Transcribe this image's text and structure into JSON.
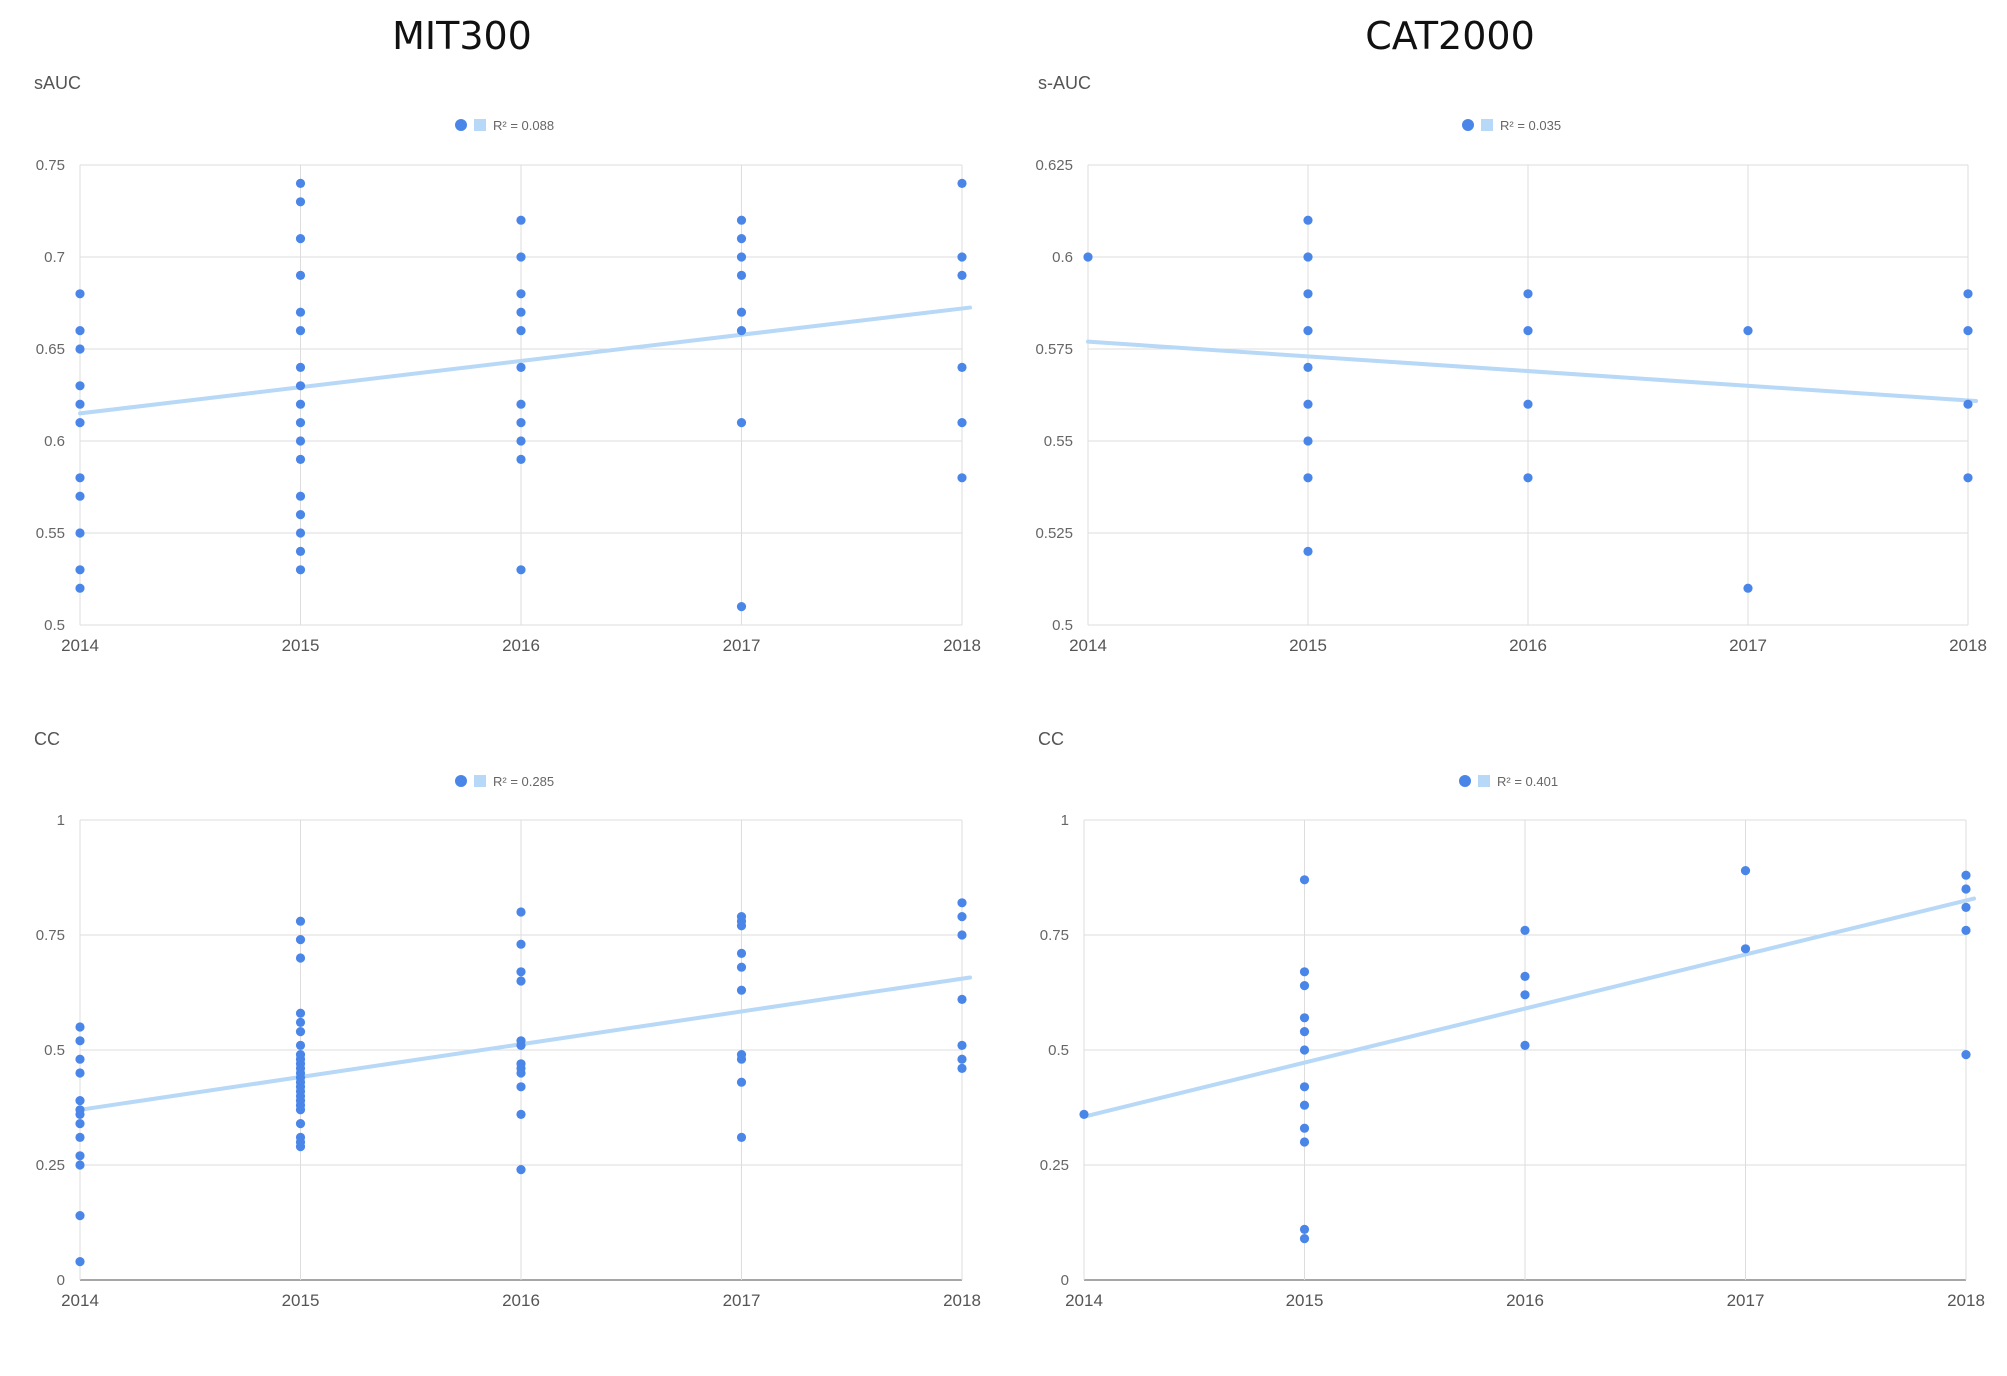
{
  "titles": {
    "left": "MIT300",
    "right": "CAT2000"
  },
  "colors": {
    "point": "#4a86e8",
    "trend": "#b7d8f6",
    "grid": "#dddddd"
  },
  "chart_data": [
    {
      "type": "scatter",
      "title": "MIT300",
      "ylabel": "sAUC",
      "legend": "R² = 0.088",
      "xlim": [
        2014,
        2018
      ],
      "ylim": [
        0.5,
        0.75
      ],
      "xticks": [
        "2014",
        "2015",
        "2016",
        "2017",
        "2018"
      ],
      "yticks": [
        "0.5",
        "0.55",
        "0.6",
        "0.65",
        "0.7",
        "0.75"
      ],
      "grid": true,
      "legend_position": "top-center",
      "trendline": [
        [
          2014,
          0.615
        ],
        [
          2018,
          0.672
        ]
      ],
      "points": [
        [
          2014,
          0.68
        ],
        [
          2014,
          0.66
        ],
        [
          2014,
          0.65
        ],
        [
          2014,
          0.63
        ],
        [
          2014,
          0.62
        ],
        [
          2014,
          0.61
        ],
        [
          2014,
          0.58
        ],
        [
          2014,
          0.57
        ],
        [
          2014,
          0.55
        ],
        [
          2014,
          0.53
        ],
        [
          2014,
          0.52
        ],
        [
          2015,
          0.74
        ],
        [
          2015,
          0.73
        ],
        [
          2015,
          0.71
        ],
        [
          2015,
          0.69
        ],
        [
          2015,
          0.67
        ],
        [
          2015,
          0.66
        ],
        [
          2015,
          0.64
        ],
        [
          2015,
          0.63
        ],
        [
          2015,
          0.62
        ],
        [
          2015,
          0.61
        ],
        [
          2015,
          0.6
        ],
        [
          2015,
          0.59
        ],
        [
          2015,
          0.57
        ],
        [
          2015,
          0.56
        ],
        [
          2015,
          0.55
        ],
        [
          2015,
          0.54
        ],
        [
          2015,
          0.53
        ],
        [
          2016,
          0.72
        ],
        [
          2016,
          0.7
        ],
        [
          2016,
          0.68
        ],
        [
          2016,
          0.67
        ],
        [
          2016,
          0.66
        ],
        [
          2016,
          0.64
        ],
        [
          2016,
          0.62
        ],
        [
          2016,
          0.61
        ],
        [
          2016,
          0.6
        ],
        [
          2016,
          0.59
        ],
        [
          2016,
          0.53
        ],
        [
          2017,
          0.72
        ],
        [
          2017,
          0.71
        ],
        [
          2017,
          0.7
        ],
        [
          2017,
          0.69
        ],
        [
          2017,
          0.67
        ],
        [
          2017,
          0.66
        ],
        [
          2017,
          0.61
        ],
        [
          2017,
          0.51
        ],
        [
          2018,
          0.74
        ],
        [
          2018,
          0.7
        ],
        [
          2018,
          0.69
        ],
        [
          2018,
          0.64
        ],
        [
          2018,
          0.61
        ],
        [
          2018,
          0.58
        ]
      ]
    },
    {
      "type": "scatter",
      "title": "CAT2000",
      "ylabel": "s-AUC",
      "legend": "R² = 0.035",
      "xlim": [
        2014,
        2018
      ],
      "ylim": [
        0.5,
        0.625
      ],
      "xticks": [
        "2014",
        "2015",
        "2016",
        "2017",
        "2018"
      ],
      "yticks": [
        "0.5",
        "0.525",
        "0.55",
        "0.575",
        "0.6",
        "0.625"
      ],
      "grid": true,
      "legend_position": "top-center",
      "trendline": [
        [
          2014,
          0.577
        ],
        [
          2018,
          0.561
        ]
      ],
      "points": [
        [
          2014,
          0.6
        ],
        [
          2015,
          0.61
        ],
        [
          2015,
          0.6
        ],
        [
          2015,
          0.59
        ],
        [
          2015,
          0.58
        ],
        [
          2015,
          0.57
        ],
        [
          2015,
          0.56
        ],
        [
          2015,
          0.55
        ],
        [
          2015,
          0.54
        ],
        [
          2015,
          0.52
        ],
        [
          2016,
          0.59
        ],
        [
          2016,
          0.58
        ],
        [
          2016,
          0.56
        ],
        [
          2016,
          0.54
        ],
        [
          2017,
          0.58
        ],
        [
          2017,
          0.51
        ],
        [
          2018,
          0.59
        ],
        [
          2018,
          0.58
        ],
        [
          2018,
          0.56
        ],
        [
          2018,
          0.54
        ]
      ]
    },
    {
      "type": "scatter",
      "ylabel": "CC",
      "legend": "R² = 0.285",
      "xlim": [
        2014,
        2018
      ],
      "ylim": [
        0,
        1
      ],
      "xticks": [
        "2014",
        "2015",
        "2016",
        "2017",
        "2018"
      ],
      "yticks": [
        "0",
        "0.25",
        "0.5",
        "0.75",
        "1"
      ],
      "grid": true,
      "legend_position": "top-center",
      "trendline": [
        [
          2014,
          0.37
        ],
        [
          2018,
          0.655
        ]
      ],
      "points": [
        [
          2014,
          0.55
        ],
        [
          2014,
          0.52
        ],
        [
          2014,
          0.48
        ],
        [
          2014,
          0.45
        ],
        [
          2014,
          0.39
        ],
        [
          2014,
          0.37
        ],
        [
          2014,
          0.36
        ],
        [
          2014,
          0.34
        ],
        [
          2014,
          0.31
        ],
        [
          2014,
          0.27
        ],
        [
          2014,
          0.25
        ],
        [
          2014,
          0.14
        ],
        [
          2014,
          0.04
        ],
        [
          2015,
          0.78
        ],
        [
          2015,
          0.74
        ],
        [
          2015,
          0.7
        ],
        [
          2015,
          0.58
        ],
        [
          2015,
          0.56
        ],
        [
          2015,
          0.54
        ],
        [
          2015,
          0.51
        ],
        [
          2015,
          0.49
        ],
        [
          2015,
          0.48
        ],
        [
          2015,
          0.47
        ],
        [
          2015,
          0.46
        ],
        [
          2015,
          0.45
        ],
        [
          2015,
          0.44
        ],
        [
          2015,
          0.43
        ],
        [
          2015,
          0.42
        ],
        [
          2015,
          0.41
        ],
        [
          2015,
          0.4
        ],
        [
          2015,
          0.39
        ],
        [
          2015,
          0.38
        ],
        [
          2015,
          0.37
        ],
        [
          2015,
          0.34
        ],
        [
          2015,
          0.31
        ],
        [
          2015,
          0.3
        ],
        [
          2015,
          0.29
        ],
        [
          2016,
          0.8
        ],
        [
          2016,
          0.73
        ],
        [
          2016,
          0.67
        ],
        [
          2016,
          0.65
        ],
        [
          2016,
          0.52
        ],
        [
          2016,
          0.51
        ],
        [
          2016,
          0.47
        ],
        [
          2016,
          0.46
        ],
        [
          2016,
          0.45
        ],
        [
          2016,
          0.42
        ],
        [
          2016,
          0.36
        ],
        [
          2016,
          0.24
        ],
        [
          2017,
          0.79
        ],
        [
          2017,
          0.78
        ],
        [
          2017,
          0.77
        ],
        [
          2017,
          0.71
        ],
        [
          2017,
          0.68
        ],
        [
          2017,
          0.63
        ],
        [
          2017,
          0.49
        ],
        [
          2017,
          0.48
        ],
        [
          2017,
          0.43
        ],
        [
          2017,
          0.31
        ],
        [
          2018,
          0.82
        ],
        [
          2018,
          0.79
        ],
        [
          2018,
          0.75
        ],
        [
          2018,
          0.61
        ],
        [
          2018,
          0.51
        ],
        [
          2018,
          0.48
        ],
        [
          2018,
          0.46
        ]
      ]
    },
    {
      "type": "scatter",
      "ylabel": "CC",
      "legend": "R² = 0.401",
      "xlim": [
        2014,
        2018
      ],
      "ylim": [
        0,
        1
      ],
      "xticks": [
        "2014",
        "2015",
        "2016",
        "2017",
        "2018"
      ],
      "yticks": [
        "0",
        "0.25",
        "0.5",
        "0.75",
        "1"
      ],
      "grid": true,
      "legend_position": "top-center",
      "trendline": [
        [
          2014,
          0.355
        ],
        [
          2018,
          0.825
        ]
      ],
      "points": [
        [
          2014,
          0.36
        ],
        [
          2015,
          0.87
        ],
        [
          2015,
          0.67
        ],
        [
          2015,
          0.64
        ],
        [
          2015,
          0.57
        ],
        [
          2015,
          0.54
        ],
        [
          2015,
          0.5
        ],
        [
          2015,
          0.42
        ],
        [
          2015,
          0.38
        ],
        [
          2015,
          0.33
        ],
        [
          2015,
          0.3
        ],
        [
          2015,
          0.11
        ],
        [
          2015,
          0.09
        ],
        [
          2016,
          0.76
        ],
        [
          2016,
          0.66
        ],
        [
          2016,
          0.62
        ],
        [
          2016,
          0.51
        ],
        [
          2017,
          0.89
        ],
        [
          2017,
          0.72
        ],
        [
          2018,
          0.88
        ],
        [
          2018,
          0.85
        ],
        [
          2018,
          0.81
        ],
        [
          2018,
          0.76
        ],
        [
          2018,
          0.49
        ]
      ]
    }
  ]
}
